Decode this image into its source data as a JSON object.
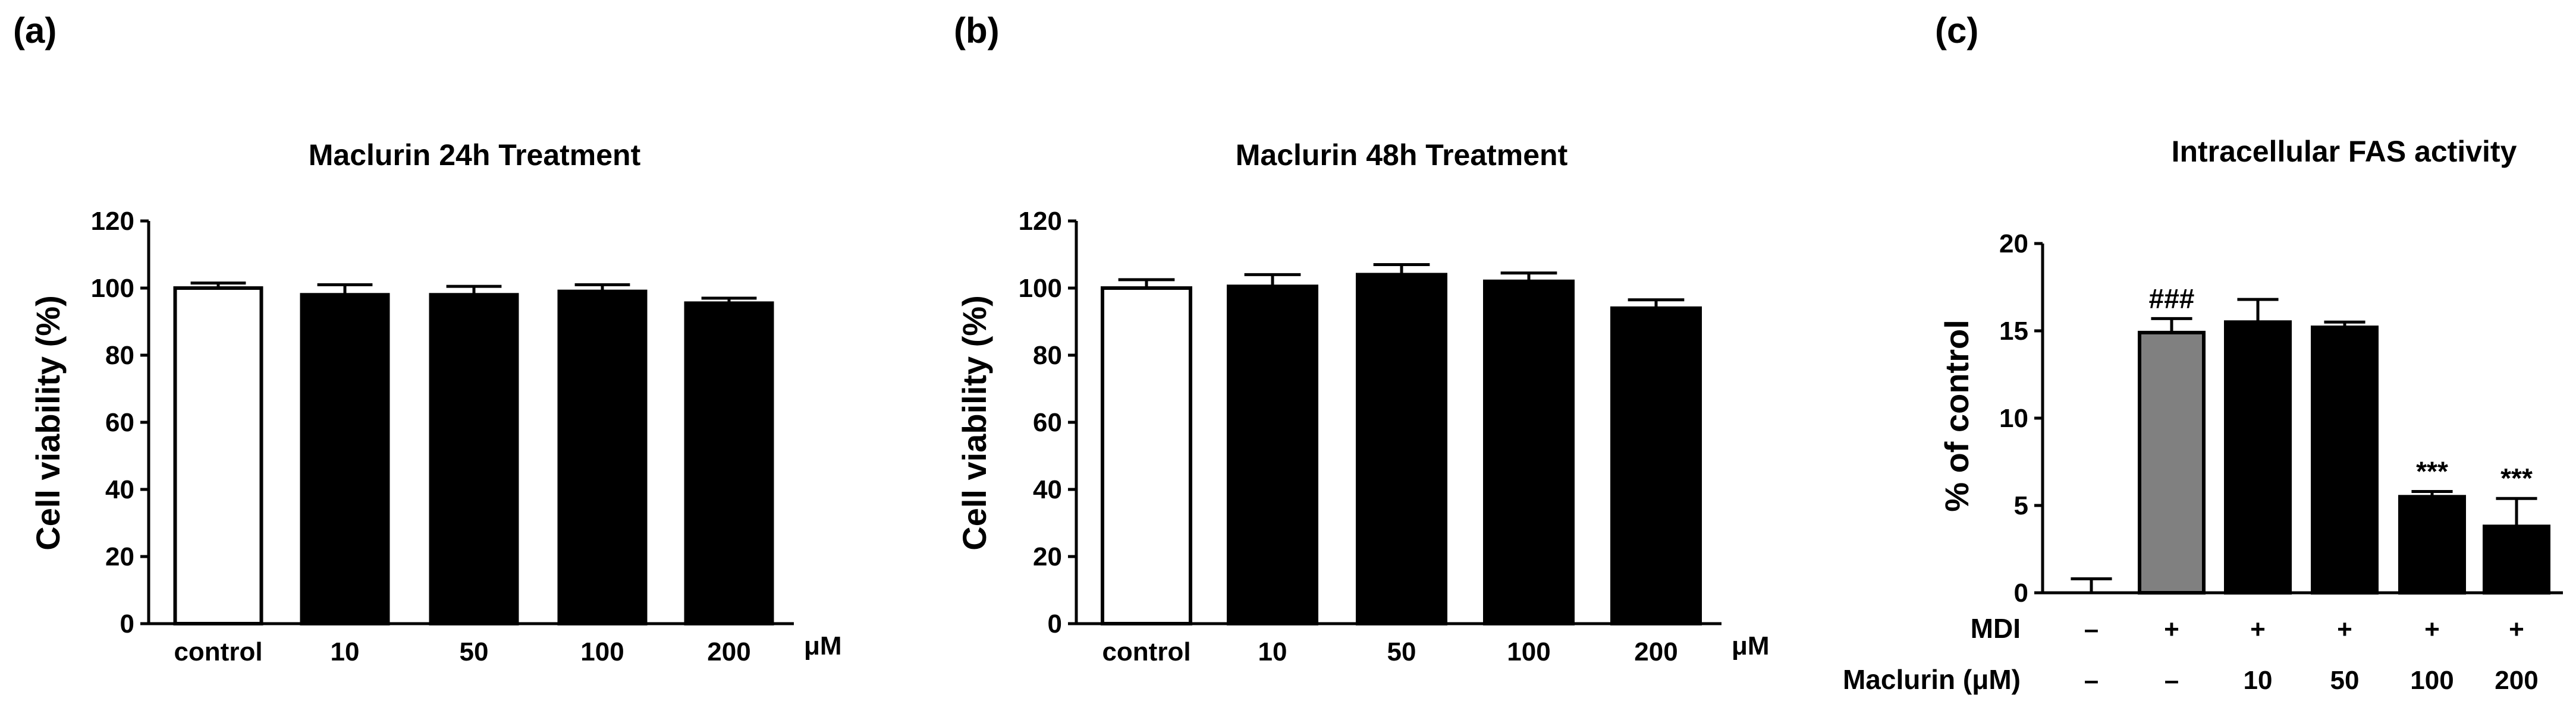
{
  "chart_data": [
    {
      "panel_label": "(a)",
      "type": "bar",
      "title": "Maclurin 24h Treatment",
      "ylabel": "Cell viability (%)",
      "xunit": "μM",
      "ylim": [
        0,
        120
      ],
      "yticks": [
        0,
        20,
        40,
        60,
        80,
        100,
        120
      ],
      "categories": [
        "control",
        "10",
        "50",
        "100",
        "200"
      ],
      "values": [
        100,
        98,
        98,
        99,
        95.5
      ],
      "errors": [
        1.5,
        3,
        2.5,
        2,
        1.5
      ],
      "colors": [
        "#ffffff",
        "#000000",
        "#000000",
        "#000000",
        "#000000"
      ]
    },
    {
      "panel_label": "(b)",
      "type": "bar",
      "title": "Maclurin 48h Treatment",
      "ylabel": "Cell viability (%)",
      "xunit": "μM",
      "ylim": [
        0,
        120
      ],
      "yticks": [
        0,
        20,
        40,
        60,
        80,
        100,
        120
      ],
      "categories": [
        "control",
        "10",
        "50",
        "100",
        "200"
      ],
      "values": [
        100,
        100.5,
        104,
        102,
        94
      ],
      "errors": [
        2.5,
        3.5,
        3,
        2.5,
        2.5
      ],
      "colors": [
        "#ffffff",
        "#000000",
        "#000000",
        "#000000",
        "#000000"
      ]
    },
    {
      "panel_label": "(c)",
      "type": "bar",
      "title": "Intracellular FAS activity",
      "ylabel": "% of control",
      "ylim": [
        0,
        20
      ],
      "yticks": [
        0,
        5,
        10,
        15,
        20
      ],
      "values": [
        0,
        14.9,
        15.5,
        15.2,
        5.5,
        3.8
      ],
      "errors": [
        0.8,
        0.8,
        1.3,
        0.3,
        0.3,
        1.6
      ],
      "colors": [
        "#000000",
        "#808080",
        "#000000",
        "#000000",
        "#000000",
        "#000000"
      ],
      "annotations": [
        "",
        "###",
        "",
        "",
        "***",
        "***"
      ],
      "rows": [
        {
          "label": "MDI",
          "values": [
            "–",
            "+",
            "+",
            "+",
            "+",
            "+"
          ]
        },
        {
          "label": "Maclurin (μM)",
          "values": [
            "–",
            "–",
            "10",
            "50",
            "100",
            "200"
          ]
        }
      ]
    }
  ]
}
